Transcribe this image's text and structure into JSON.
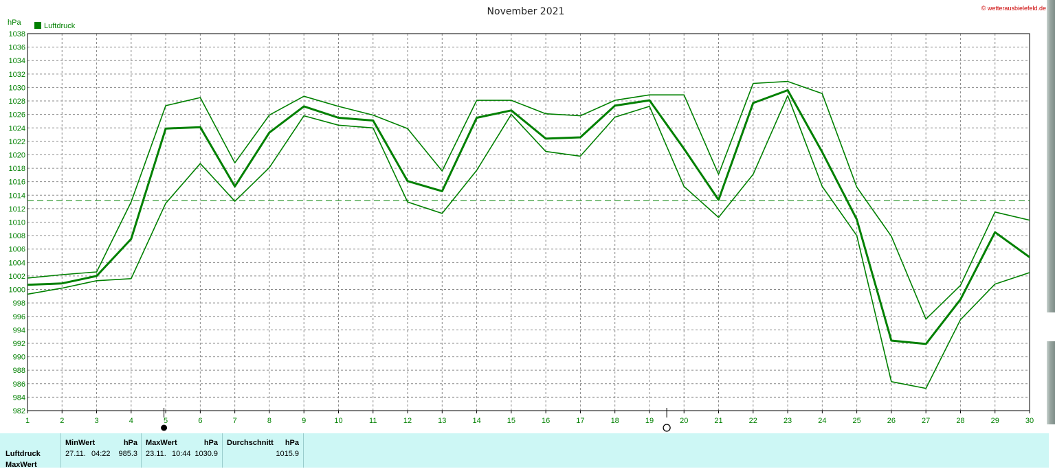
{
  "chart_data": {
    "type": "line",
    "title": "November 2021",
    "copyright": "© wetterausbielefeld.de",
    "ylabel": "hPa",
    "ylim": [
      982,
      1038
    ],
    "yticks": [
      982,
      984,
      986,
      988,
      990,
      992,
      994,
      996,
      998,
      1000,
      1002,
      1004,
      1006,
      1008,
      1010,
      1012,
      1014,
      1016,
      1018,
      1020,
      1022,
      1024,
      1026,
      1028,
      1030,
      1032,
      1034,
      1036,
      1038
    ],
    "x": [
      1,
      2,
      3,
      4,
      5,
      6,
      7,
      8,
      9,
      10,
      11,
      12,
      13,
      14,
      15,
      16,
      17,
      18,
      19,
      20,
      21,
      22,
      23,
      24,
      25,
      26,
      27,
      28,
      29,
      30
    ],
    "xlim": [
      1,
      30
    ],
    "legend": "Luftdruck",
    "reference_line": 1013.2,
    "moon_phases": [
      {
        "day": 4.95,
        "phase": "new"
      },
      {
        "day": 19.5,
        "phase": "full"
      }
    ],
    "series": [
      {
        "name": "Luftdruck",
        "role": "max",
        "values": [
          1001.7,
          1002.2,
          1002.6,
          1013.0,
          1027.3,
          1028.5,
          1018.8,
          1025.9,
          1028.7,
          1027.2,
          1025.9,
          1023.9,
          1017.6,
          1028.1,
          1028.1,
          1026.1,
          1025.8,
          1028.1,
          1028.9,
          1028.9,
          1017.1,
          1030.6,
          1030.9,
          1029.1,
          1015.2,
          1007.9,
          995.6,
          1000.6,
          1011.5,
          1010.3
        ]
      },
      {
        "name": "Luftdruck",
        "role": "mean",
        "values": [
          1000.7,
          1000.9,
          1002.0,
          1007.5,
          1023.9,
          1024.1,
          1015.3,
          1023.3,
          1027.2,
          1025.5,
          1025.1,
          1016.1,
          1014.6,
          1025.5,
          1026.6,
          1022.4,
          1022.6,
          1027.3,
          1028.1,
          1020.9,
          1013.3,
          1027.7,
          1029.6,
          1020.4,
          1010.4,
          992.4,
          991.9,
          998.5,
          1008.5,
          1004.8
        ]
      },
      {
        "name": "Luftdruck",
        "role": "min",
        "values": [
          999.3,
          1000.2,
          1001.3,
          1001.6,
          1012.8,
          1018.7,
          1013.1,
          1018.1,
          1025.8,
          1024.4,
          1024.0,
          1013.0,
          1011.3,
          1017.7,
          1026.0,
          1020.5,
          1019.8,
          1025.6,
          1027.2,
          1015.3,
          1010.7,
          1017.1,
          1028.8,
          1015.3,
          1008.0,
          986.3,
          985.3,
          995.5,
          1000.8,
          1002.5
        ]
      }
    ]
  },
  "stats": {
    "row_label": "Luftdruck",
    "row_label2": "MaxWert",
    "min_header": "MinWert",
    "min_unit": "hPa",
    "min_date": "27.11.",
    "min_time": "04:22",
    "min_value": "985.3",
    "max_header": "MaxWert",
    "max_unit": "hPa",
    "max_date": "23.11.",
    "max_time": "10:44",
    "max_value": "1030.9",
    "avg_header": "Durchschnitt",
    "avg_unit": "hPa",
    "avg_value": "1015.9"
  },
  "colors": {
    "series": "#008000",
    "grid": "#888888",
    "reference": "#008000",
    "stats_bg": "#cdf7f5"
  }
}
